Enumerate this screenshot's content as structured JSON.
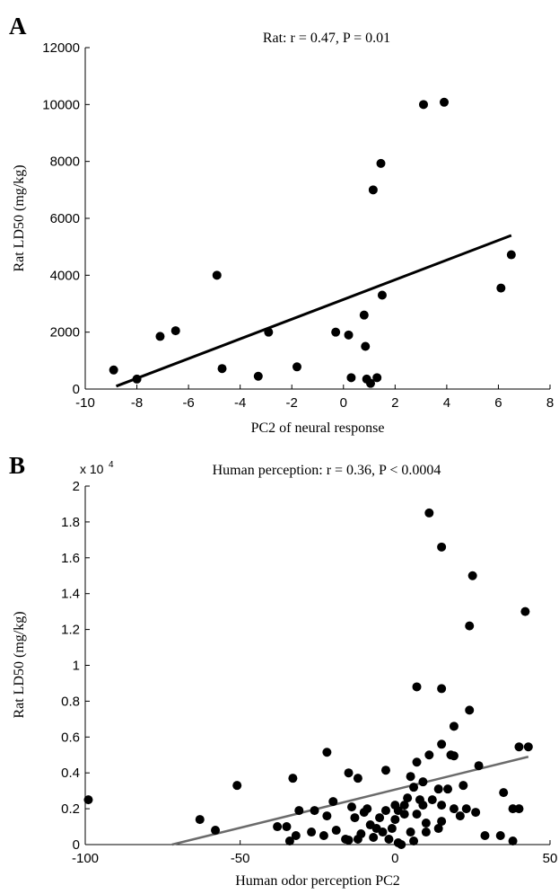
{
  "panels": [
    {
      "letter": "A"
    },
    {
      "letter": "B"
    }
  ],
  "chart_data": [
    {
      "type": "scatter",
      "title": "Rat: r = 0.47, P = 0.01",
      "xlabel": "PC2 of neural response",
      "ylabel": "Rat LD50 (mg/kg)",
      "xlim": [
        -10,
        8
      ],
      "ylim": [
        0,
        12000
      ],
      "x_ticks": [
        -10,
        -8,
        -6,
        -4,
        -2,
        0,
        2,
        4,
        6,
        8
      ],
      "y_ticks": [
        0,
        2000,
        4000,
        6000,
        8000,
        10000,
        12000
      ],
      "x_tick_labels": [
        "-10",
        "-8",
        "-6",
        "-4",
        "-2",
        "0",
        "2",
        "4",
        "6",
        "8"
      ],
      "y_tick_labels": [
        "0",
        "2000",
        "4000",
        "6000",
        "8000",
        "10000",
        "12000"
      ],
      "points": [
        {
          "x": -8.9,
          "y": 670
        },
        {
          "x": -8.0,
          "y": 350
        },
        {
          "x": -7.1,
          "y": 1850
        },
        {
          "x": -6.5,
          "y": 2050
        },
        {
          "x": -4.9,
          "y": 4000
        },
        {
          "x": -4.7,
          "y": 720
        },
        {
          "x": -3.3,
          "y": 450
        },
        {
          "x": -2.9,
          "y": 2000
        },
        {
          "x": -1.8,
          "y": 780
        },
        {
          "x": -0.3,
          "y": 2000
        },
        {
          "x": 0.2,
          "y": 1900
        },
        {
          "x": 0.3,
          "y": 400
        },
        {
          "x": 0.8,
          "y": 2600
        },
        {
          "x": 0.85,
          "y": 1500
        },
        {
          "x": 0.9,
          "y": 350
        },
        {
          "x": 1.05,
          "y": 200
        },
        {
          "x": 1.15,
          "y": 7000
        },
        {
          "x": 1.3,
          "y": 400
        },
        {
          "x": 1.45,
          "y": 7930
        },
        {
          "x": 1.5,
          "y": 3300
        },
        {
          "x": 3.1,
          "y": 10000
        },
        {
          "x": 3.9,
          "y": 10080
        },
        {
          "x": 6.1,
          "y": 3550
        },
        {
          "x": 6.5,
          "y": 4720
        }
      ],
      "fit_line": {
        "x": [
          -8.8,
          6.5
        ],
        "y": [
          100,
          5400
        ],
        "color": "#000000"
      }
    },
    {
      "type": "scatter",
      "title": "Human perception: r = 0.36, P < 0.0004",
      "xlabel": "Human odor perception PC2",
      "ylabel": "Rat LD50 (mg/kg)",
      "xlim": [
        -100,
        50
      ],
      "ylim": [
        0,
        20000
      ],
      "y_scale_label": "x 10",
      "y_scale_exponent": "4",
      "x_ticks": [
        -100,
        -50,
        0,
        50
      ],
      "y_ticks": [
        0,
        2000,
        4000,
        6000,
        8000,
        10000,
        12000,
        14000,
        16000,
        18000,
        20000
      ],
      "x_tick_labels": [
        "-100",
        "-50",
        "0",
        "50"
      ],
      "y_tick_labels": [
        "0",
        "0.2",
        "0.4",
        "0.6",
        "0.8",
        "1",
        "1.2",
        "1.4",
        "1.6",
        "1.8",
        "2"
      ],
      "points": [
        {
          "x": -99,
          "y": 2500
        },
        {
          "x": -63,
          "y": 1400
        },
        {
          "x": -58,
          "y": 800
        },
        {
          "x": -51,
          "y": 3300
        },
        {
          "x": -38,
          "y": 1000
        },
        {
          "x": -35,
          "y": 1000
        },
        {
          "x": -34,
          "y": 200
        },
        {
          "x": -33,
          "y": 3700
        },
        {
          "x": -32,
          "y": 500
        },
        {
          "x": -31,
          "y": 1900
        },
        {
          "x": -27,
          "y": 700
        },
        {
          "x": -26,
          "y": 1900
        },
        {
          "x": -23,
          "y": 500
        },
        {
          "x": -22,
          "y": 1600
        },
        {
          "x": -22,
          "y": 5150
        },
        {
          "x": -20,
          "y": 2400
        },
        {
          "x": -19,
          "y": 800
        },
        {
          "x": -16,
          "y": 300
        },
        {
          "x": -15,
          "y": 250
        },
        {
          "x": -15,
          "y": 4000
        },
        {
          "x": -14,
          "y": 2100
        },
        {
          "x": -13,
          "y": 1500
        },
        {
          "x": -12,
          "y": 3700
        },
        {
          "x": -12,
          "y": 300
        },
        {
          "x": -11,
          "y": 600
        },
        {
          "x": -10,
          "y": 1800
        },
        {
          "x": -9,
          "y": 2000
        },
        {
          "x": -8,
          "y": 1100
        },
        {
          "x": -7,
          "y": 400
        },
        {
          "x": -6,
          "y": 900
        },
        {
          "x": -5,
          "y": 1500
        },
        {
          "x": -4,
          "y": 700
        },
        {
          "x": -3,
          "y": 1900
        },
        {
          "x": -3,
          "y": 4150
        },
        {
          "x": -2,
          "y": 300
        },
        {
          "x": -1,
          "y": 900
        },
        {
          "x": 0,
          "y": 1400
        },
        {
          "x": 0,
          "y": 2200
        },
        {
          "x": 1,
          "y": 100
        },
        {
          "x": 1,
          "y": 1900
        },
        {
          "x": 2,
          "y": 0
        },
        {
          "x": 3,
          "y": 1700
        },
        {
          "x": 3,
          "y": 2200
        },
        {
          "x": 4,
          "y": 2600
        },
        {
          "x": 5,
          "y": 3800
        },
        {
          "x": 5,
          "y": 700
        },
        {
          "x": 6,
          "y": 200
        },
        {
          "x": 6,
          "y": 3200
        },
        {
          "x": 7,
          "y": 1700
        },
        {
          "x": 7,
          "y": 4600
        },
        {
          "x": 7,
          "y": 8800
        },
        {
          "x": 8,
          "y": 2500
        },
        {
          "x": 9,
          "y": 2200
        },
        {
          "x": 9,
          "y": 3500
        },
        {
          "x": 10,
          "y": 700
        },
        {
          "x": 10,
          "y": 1200
        },
        {
          "x": 11,
          "y": 5000
        },
        {
          "x": 11,
          "y": 18500
        },
        {
          "x": 12,
          "y": 2500
        },
        {
          "x": 14,
          "y": 900
        },
        {
          "x": 14,
          "y": 3100
        },
        {
          "x": 15,
          "y": 1300
        },
        {
          "x": 15,
          "y": 2200
        },
        {
          "x": 15,
          "y": 5600
        },
        {
          "x": 15,
          "y": 16600
        },
        {
          "x": 15,
          "y": 8700
        },
        {
          "x": 17,
          "y": 3100
        },
        {
          "x": 18,
          "y": 5000
        },
        {
          "x": 19,
          "y": 2000
        },
        {
          "x": 19,
          "y": 4950
        },
        {
          "x": 19,
          "y": 6600
        },
        {
          "x": 21,
          "y": 1600
        },
        {
          "x": 22,
          "y": 3300
        },
        {
          "x": 23,
          "y": 2000
        },
        {
          "x": 24,
          "y": 7500
        },
        {
          "x": 24,
          "y": 12200
        },
        {
          "x": 25,
          "y": 15000
        },
        {
          "x": 26,
          "y": 1800
        },
        {
          "x": 27,
          "y": 4400
        },
        {
          "x": 29,
          "y": 500
        },
        {
          "x": 34,
          "y": 500
        },
        {
          "x": 35,
          "y": 2900
        },
        {
          "x": 38,
          "y": 200
        },
        {
          "x": 38,
          "y": 2000
        },
        {
          "x": 40,
          "y": 5450
        },
        {
          "x": 40,
          "y": 2000
        },
        {
          "x": 42,
          "y": 13000
        },
        {
          "x": 43,
          "y": 5450
        }
      ],
      "fit_line": {
        "x": [
          -72,
          43
        ],
        "y": [
          0,
          4900
        ],
        "color": "#6b6b6b"
      }
    }
  ]
}
